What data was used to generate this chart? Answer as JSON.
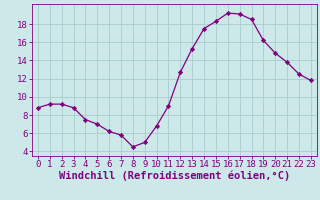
{
  "x": [
    0,
    1,
    2,
    3,
    4,
    5,
    6,
    7,
    8,
    9,
    10,
    11,
    12,
    13,
    14,
    15,
    16,
    17,
    18,
    19,
    20,
    21,
    22,
    23
  ],
  "y": [
    8.8,
    9.2,
    9.2,
    8.8,
    7.5,
    7.0,
    6.2,
    5.8,
    4.5,
    5.0,
    6.8,
    9.0,
    12.7,
    15.3,
    17.5,
    18.3,
    19.2,
    19.1,
    18.5,
    16.2,
    14.8,
    13.8,
    12.5,
    11.8
  ],
  "line_color": "#800080",
  "marker": "D",
  "marker_size": 2.2,
  "bg_color": "#cce8e8",
  "grid_color": "#aacccc",
  "xlabel": "Windchill (Refroidissement éolien,°C)",
  "xlim": [
    -0.5,
    23.5
  ],
  "ylim": [
    3.5,
    20.2
  ],
  "yticks": [
    4,
    6,
    8,
    10,
    12,
    14,
    16,
    18
  ],
  "xticks": [
    0,
    1,
    2,
    3,
    4,
    5,
    6,
    7,
    8,
    9,
    10,
    11,
    12,
    13,
    14,
    15,
    16,
    17,
    18,
    19,
    20,
    21,
    22,
    23
  ],
  "tick_color": "#800080",
  "label_color": "#800080",
  "tick_fontsize": 6.5,
  "xlabel_fontsize": 7.5
}
